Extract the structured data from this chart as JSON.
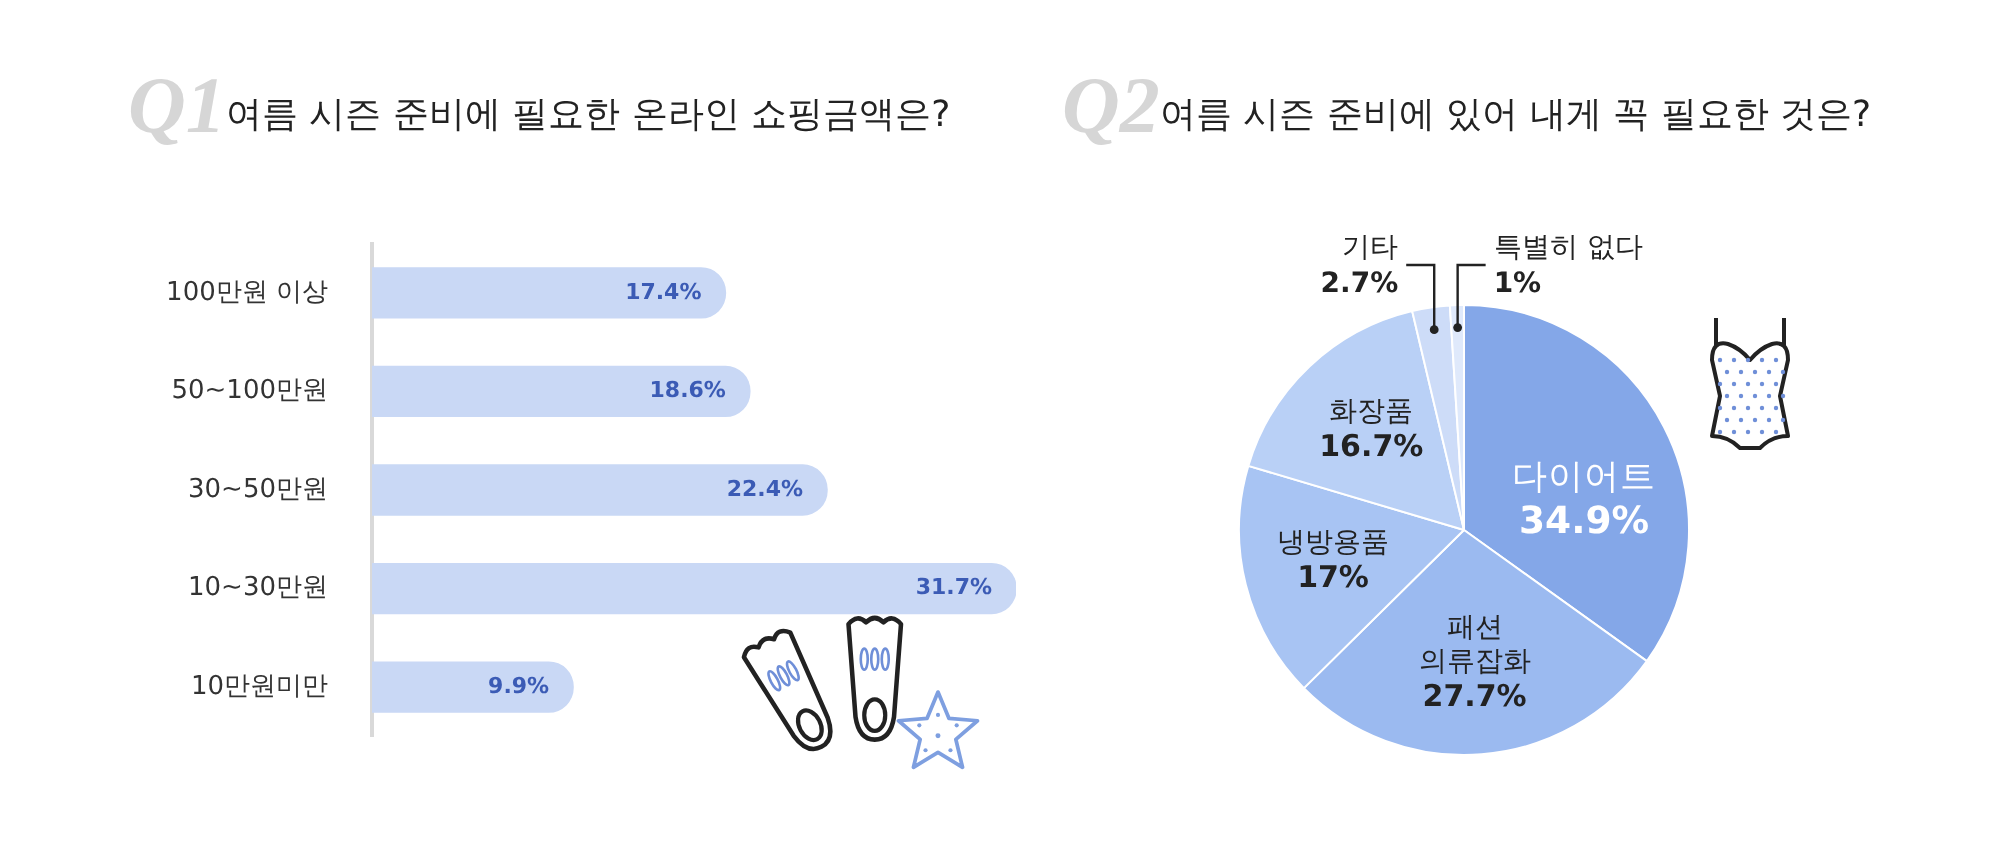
{
  "chart_data": [
    {
      "type": "bar",
      "orientation": "horizontal",
      "title": "여름 시즌 준비에 필요한 온라인 쇼핑금액은?",
      "annotations": [
        "Q1"
      ],
      "categories": [
        "100만원 이상",
        "50~100만원",
        "30~50만원",
        "10~30만원",
        "10만원미만"
      ],
      "values": [
        17.4,
        18.6,
        22.4,
        31.7,
        9.9
      ],
      "value_labels": [
        "17.4%",
        "18.6%",
        "22.4%",
        "31.7%",
        "9.9%"
      ],
      "color": "#c9d8f5"
    },
    {
      "type": "pie",
      "title": "여름 시즌 준비에 있어 내게 꼭 필요한 것은?",
      "annotations": [
        "Q2"
      ],
      "categories": [
        "다이어트",
        "패션\n의류잡화",
        "냉방용품",
        "화장품",
        "기타",
        "특별히 없다"
      ],
      "values": [
        34.9,
        27.7,
        17,
        16.7,
        2.7,
        1
      ],
      "value_labels": [
        "34.9%",
        "27.7%",
        "17%",
        "16.7%",
        "2.7%",
        "1%"
      ],
      "colors": [
        "#84a7e8",
        "#9bbaf0",
        "#a8c4f3",
        "#b9d0f6",
        "#cddcf8",
        "#dfe9fb"
      ]
    }
  ]
}
